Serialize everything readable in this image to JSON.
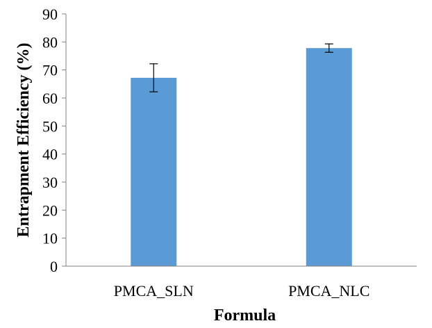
{
  "chart_data": {
    "type": "bar",
    "title": "",
    "xlabel": "Formula",
    "ylabel": "Entrapment Efficiency (%)",
    "categories": [
      "PMCA_SLN",
      "PMCA_NLC"
    ],
    "series": [
      {
        "values": [
          67.2,
          77.8
        ],
        "error": [
          5.0,
          1.5
        ],
        "color": "#5b9bd5"
      }
    ],
    "ylim": [
      0,
      90
    ],
    "yticks": [
      0,
      10,
      20,
      30,
      40,
      50,
      60,
      70,
      80,
      90
    ],
    "ytick_labels": [
      "0",
      "10",
      "20",
      "30",
      "40",
      "50",
      "60",
      "70",
      "80",
      "90"
    ],
    "grid": false,
    "legend": "none"
  }
}
